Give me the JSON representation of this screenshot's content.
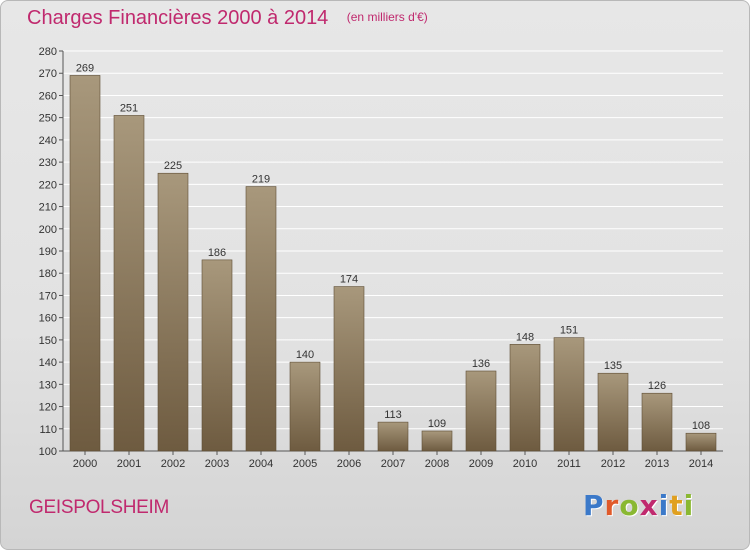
{
  "header": {
    "title": "Charges Financières 2000 à 2014",
    "unit": "(en milliers d'€)"
  },
  "footer": {
    "commune": "GEISPOLSHEIM",
    "logo_text": "Proxiti"
  },
  "colors": {
    "title": "#c0296e",
    "bar_top": "#a8987c",
    "bar_bottom": "#6e5b40",
    "grid": "#ffffff",
    "logo_letters": [
      "#3b79c9",
      "#e05a2a",
      "#8ab832",
      "#c0296e",
      "#3b79c9",
      "#e0a020",
      "#8ab832"
    ]
  },
  "chart_data": {
    "type": "bar",
    "title": "Charges Financières 2000 à 2014",
    "subtitle": "(en milliers d'€)",
    "categories": [
      "2000",
      "2001",
      "2002",
      "2003",
      "2004",
      "2005",
      "2006",
      "2007",
      "2008",
      "2009",
      "2010",
      "2011",
      "2012",
      "2013",
      "2014"
    ],
    "values": [
      269,
      251,
      225,
      186,
      219,
      140,
      174,
      113,
      109,
      136,
      148,
      151,
      135,
      126,
      108
    ],
    "ylim": [
      100,
      280
    ],
    "ytick_step": 10,
    "grid": true,
    "data_labels": true
  }
}
